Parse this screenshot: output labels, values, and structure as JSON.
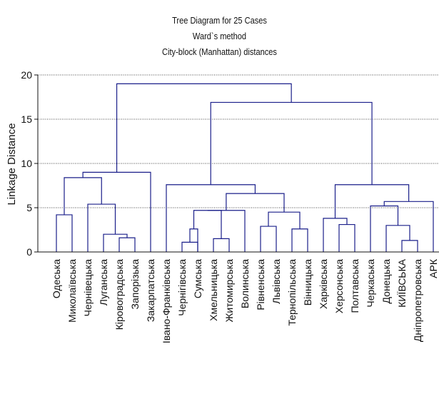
{
  "chart_data": {
    "type": "dendrogram",
    "title": "Tree Diagram for 25 Cases",
    "subtitles": [
      "Ward`s method",
      "City-block (Manhattan) distances"
    ],
    "ylabel": "Linkage Distance",
    "ylim": [
      0,
      20
    ],
    "yticks": [
      0,
      5,
      10,
      15,
      20
    ],
    "grid": true,
    "leaves": [
      "Одеська",
      "Миколаївська",
      "Чернівецька",
      "Луганська",
      "Кіровоградська",
      "Запорізька",
      "Закарпатська",
      "Івано-Франківська",
      "Чернігівська",
      "Сумська",
      "Хмельницька",
      "Житомирська",
      "Волинська",
      "Рівненська",
      "Львівська",
      "Тернопільська",
      "Вінницька",
      "Харківська",
      "Херсонська",
      "Полтавська",
      "Черкаська",
      "Донецька",
      "КИЇВСЬКА",
      "Дніпропетровська",
      "АРК"
    ],
    "merges": [
      {
        "a": "L8",
        "b": "L9",
        "height": 1.1
      },
      {
        "a": "L10",
        "b": "L11",
        "height": 1.5
      },
      {
        "a": "L4",
        "b": "L5",
        "height": 1.6
      },
      {
        "a": "L22",
        "b": "L23",
        "height": 1.3
      },
      {
        "a": "L3",
        "b": "M3",
        "height": 2.0
      },
      {
        "a": "L15",
        "b": "L16",
        "height": 2.6
      },
      {
        "a": "L9x",
        "b": "",
        "height": 0
      },
      {
        "a": "M1",
        "b": "L9",
        "height": 2.6
      },
      {
        "a": "L13",
        "b": "L14",
        "height": 2.9
      },
      {
        "a": "L21",
        "b": "M4",
        "height": 3.0
      },
      {
        "a": "L18",
        "b": "L19",
        "height": 3.1
      },
      {
        "a": "L17",
        "b": "M11",
        "height": 3.8
      },
      {
        "a": "L0",
        "b": "L1",
        "height": 4.2
      },
      {
        "a": "M9",
        "b": "M6",
        "height": 4.5
      },
      {
        "a": "M8",
        "b": "M2",
        "height": 4.7
      },
      {
        "a": "M15",
        "b": "L12",
        "height": 4.7
      },
      {
        "a": "L20",
        "b": "M10",
        "height": 5.2
      },
      {
        "a": "L2",
        "b": "M5",
        "height": 5.4
      },
      {
        "a": "M17",
        "b": "L24",
        "height": 5.7
      },
      {
        "a": "M16",
        "b": "M14",
        "height": 6.6
      },
      {
        "a": "L7",
        "b": "M20",
        "height": 7.6
      },
      {
        "a": "M12",
        "b": "M19",
        "height": 7.6
      },
      {
        "a": "M13",
        "b": "M18",
        "height": 8.4
      },
      {
        "a": "M23",
        "b": "L6",
        "height": 9.0
      },
      {
        "a": "M21",
        "b": "M22",
        "height": 16.9
      },
      {
        "a": "M24",
        "b": "M25",
        "height": 19.0
      }
    ]
  }
}
